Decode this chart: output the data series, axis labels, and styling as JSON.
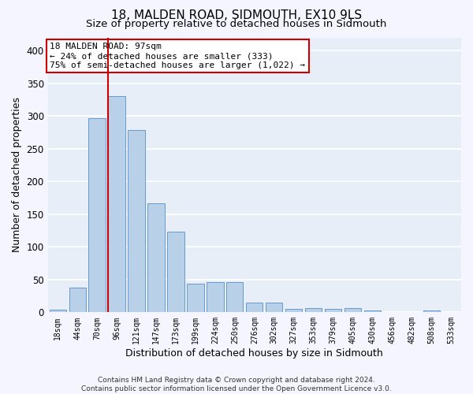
{
  "title": "18, MALDEN ROAD, SIDMOUTH, EX10 9LS",
  "subtitle": "Size of property relative to detached houses in Sidmouth",
  "xlabel": "Distribution of detached houses by size in Sidmouth",
  "ylabel": "Number of detached properties",
  "bar_labels": [
    "18sqm",
    "44sqm",
    "70sqm",
    "96sqm",
    "121sqm",
    "147sqm",
    "173sqm",
    "199sqm",
    "224sqm",
    "250sqm",
    "276sqm",
    "302sqm",
    "327sqm",
    "353sqm",
    "379sqm",
    "405sqm",
    "430sqm",
    "456sqm",
    "482sqm",
    "508sqm",
    "533sqm"
  ],
  "bar_values": [
    4,
    38,
    297,
    330,
    278,
    167,
    123,
    44,
    46,
    46,
    15,
    15,
    5,
    6,
    5,
    6,
    3,
    0,
    0,
    3,
    0
  ],
  "bar_color": "#b8d0e8",
  "bar_edgecolor": "#6699cc",
  "annotation_text": "18 MALDEN ROAD: 97sqm\n← 24% of detached houses are smaller (333)\n75% of semi-detached houses are larger (1,022) →",
  "annotation_box_color": "#ffffff",
  "annotation_box_edgecolor": "#cc0000",
  "vline_color": "#cc0000",
  "vline_x_index": 3,
  "ylim": [
    0,
    420
  ],
  "yticks": [
    0,
    50,
    100,
    150,
    200,
    250,
    300,
    350,
    400
  ],
  "background_color": "#e8eef8",
  "grid_color": "#ffffff",
  "fig_background": "#f5f5ff",
  "footer_text": "Contains HM Land Registry data © Crown copyright and database right 2024.\nContains public sector information licensed under the Open Government Licence v3.0.",
  "title_fontsize": 11,
  "subtitle_fontsize": 9.5,
  "xlabel_fontsize": 9,
  "ylabel_fontsize": 9,
  "annotation_fontsize": 8,
  "footer_fontsize": 6.5
}
